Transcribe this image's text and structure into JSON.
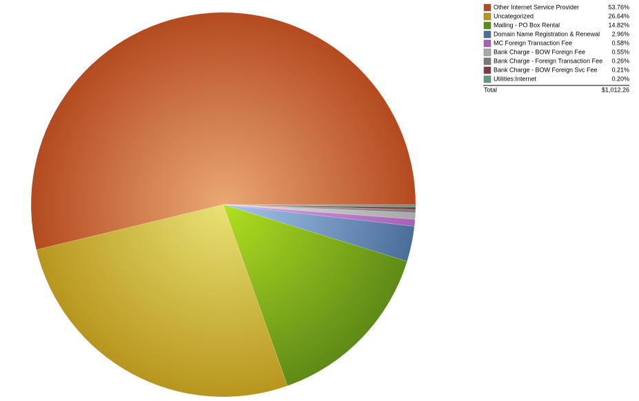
{
  "chart_data": {
    "type": "pie",
    "categories": [
      "Other Internet Service Provider",
      "Uncategorized",
      "Mailing - PO Box Rental",
      "Domain Name Registration & Renewal",
      "MC Foreign Transaction Fee",
      "Bank Charge - BOW Foreign Fee",
      "Bank Charge - Foreign Transaction Fee",
      "Bank Charge - BOW Foreign Svc Fee",
      "Utilities:Internet"
    ],
    "values": [
      53.76,
      26.64,
      14.82,
      2.96,
      0.58,
      0.55,
      0.26,
      0.21,
      0.2
    ],
    "value_labels": [
      "53.76%",
      "26.64%",
      "14.82%",
      "2.96%",
      "0.58%",
      "0.55%",
      "0.26%",
      "0.21%",
      "0.20%"
    ],
    "colors": [
      "#b44a20",
      "#b8961e",
      "#5e8a18",
      "#4a6e9a",
      "#a860b8",
      "#a8a8a8",
      "#7a7a7a",
      "#7a3c44",
      "#5e9c7c"
    ],
    "center_colors": [
      "#eaa874",
      "#e8e274",
      "#b2e020",
      "#a8c8ee",
      "#d8a8e8",
      "#e0e0e0",
      "#b8b8b8",
      "#b07880",
      "#a0d8b8"
    ],
    "total_label": "Total",
    "total_value": "$1,012.26"
  }
}
